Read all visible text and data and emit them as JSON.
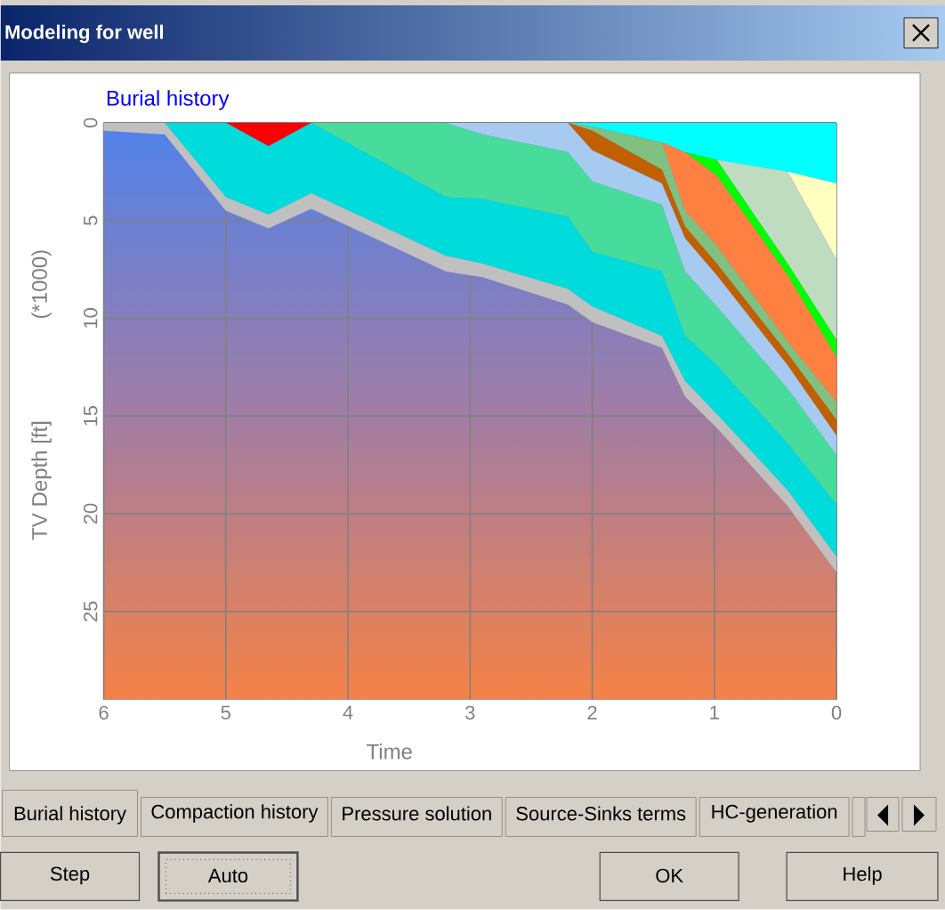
{
  "chart_data": {
    "type": "area",
    "stacked": true,
    "title": "Burial history",
    "xlabel": "Time",
    "ylabel": "TV Depth [ft]",
    "annotations": [
      "(*1000)",
      "Modeling for well",
      "Burial history",
      "Compaction history",
      "Pressure solution",
      "Source-Sinks terms",
      "HC-generation",
      "Step",
      "Auto",
      "OK",
      "Help"
    ],
    "x": [
      6,
      5.5,
      5.0,
      4.65,
      4.3,
      3.2,
      2.9,
      2.2,
      2.0,
      1.43,
      1.24,
      0.98,
      0.4,
      0
    ],
    "series": [
      {
        "color": "#00ffff",
        "values": [
          null,
          null,
          null,
          null,
          null,
          null,
          null,
          0,
          0.2,
          1.0,
          1.5,
          1.9,
          2.5,
          3.1
        ]
      },
      {
        "color": "#ffffc0",
        "values": [
          null,
          null,
          null,
          null,
          null,
          null,
          null,
          null,
          null,
          null,
          null,
          null,
          0,
          3.9
        ]
      },
      {
        "color": "#c0dcc0",
        "values": [
          null,
          null,
          null,
          null,
          null,
          null,
          null,
          null,
          null,
          null,
          null,
          0,
          4.7,
          4.1
        ]
      },
      {
        "color": "#00ff00",
        "values": [
          null,
          null,
          null,
          null,
          null,
          null,
          null,
          null,
          null,
          null,
          0,
          0.8,
          0.6,
          0.9
        ]
      },
      {
        "color": "#ff8040",
        "values": [
          null,
          null,
          null,
          null,
          null,
          null,
          null,
          null,
          null,
          0,
          3.0,
          3.6,
          3.4,
          2.3
        ]
      },
      {
        "color": "#80c080",
        "values": [
          null,
          null,
          null,
          null,
          null,
          null,
          null,
          0,
          0.2,
          1.4,
          0.8,
          0.9,
          0.6,
          0.9
        ]
      },
      {
        "color": "#c06000",
        "values": [
          null,
          null,
          null,
          null,
          null,
          null,
          null,
          0,
          1.0,
          0.7,
          0.6,
          0.6,
          0.6,
          0.8
        ]
      },
      {
        "color": "#a6caf0",
        "values": [
          null,
          null,
          null,
          null,
          null,
          0,
          0.6,
          1.5,
          1.6,
          1.1,
          1.7,
          1.6,
          1.2,
          1.0
        ]
      },
      {
        "color": "#ff0000",
        "values": [
          null,
          null,
          0,
          1.2,
          0,
          null,
          null,
          null,
          null,
          null,
          null,
          null,
          null,
          null
        ]
      },
      {
        "color": "#48dc9c",
        "values": [
          null,
          null,
          null,
          null,
          0,
          3.8,
          3.3,
          3.3,
          3.6,
          3.4,
          3.3,
          3.0,
          2.8,
          2.5
        ]
      },
      {
        "color": "#00dcdc",
        "values": [
          null,
          0,
          3.8,
          3.5,
          3.6,
          3.0,
          3.3,
          3.7,
          2.8,
          3.3,
          2.3,
          2.5,
          2.4,
          2.7
        ]
      },
      {
        "color": "#c0c0c0",
        "values": [
          0.4,
          0.6,
          0.7,
          0.7,
          0.8,
          0.8,
          0.7,
          0.8,
          0.8,
          0.6,
          0.8,
          0.7,
          0.8,
          0.8
        ]
      }
    ],
    "xlim": [
      6,
      0
    ],
    "ylim": [
      29.5,
      0
    ],
    "xticks": [
      6,
      5,
      4,
      3,
      2,
      1,
      0
    ],
    "yticks": [
      0,
      5,
      10,
      15,
      20,
      25
    ],
    "grid": true
  }
}
